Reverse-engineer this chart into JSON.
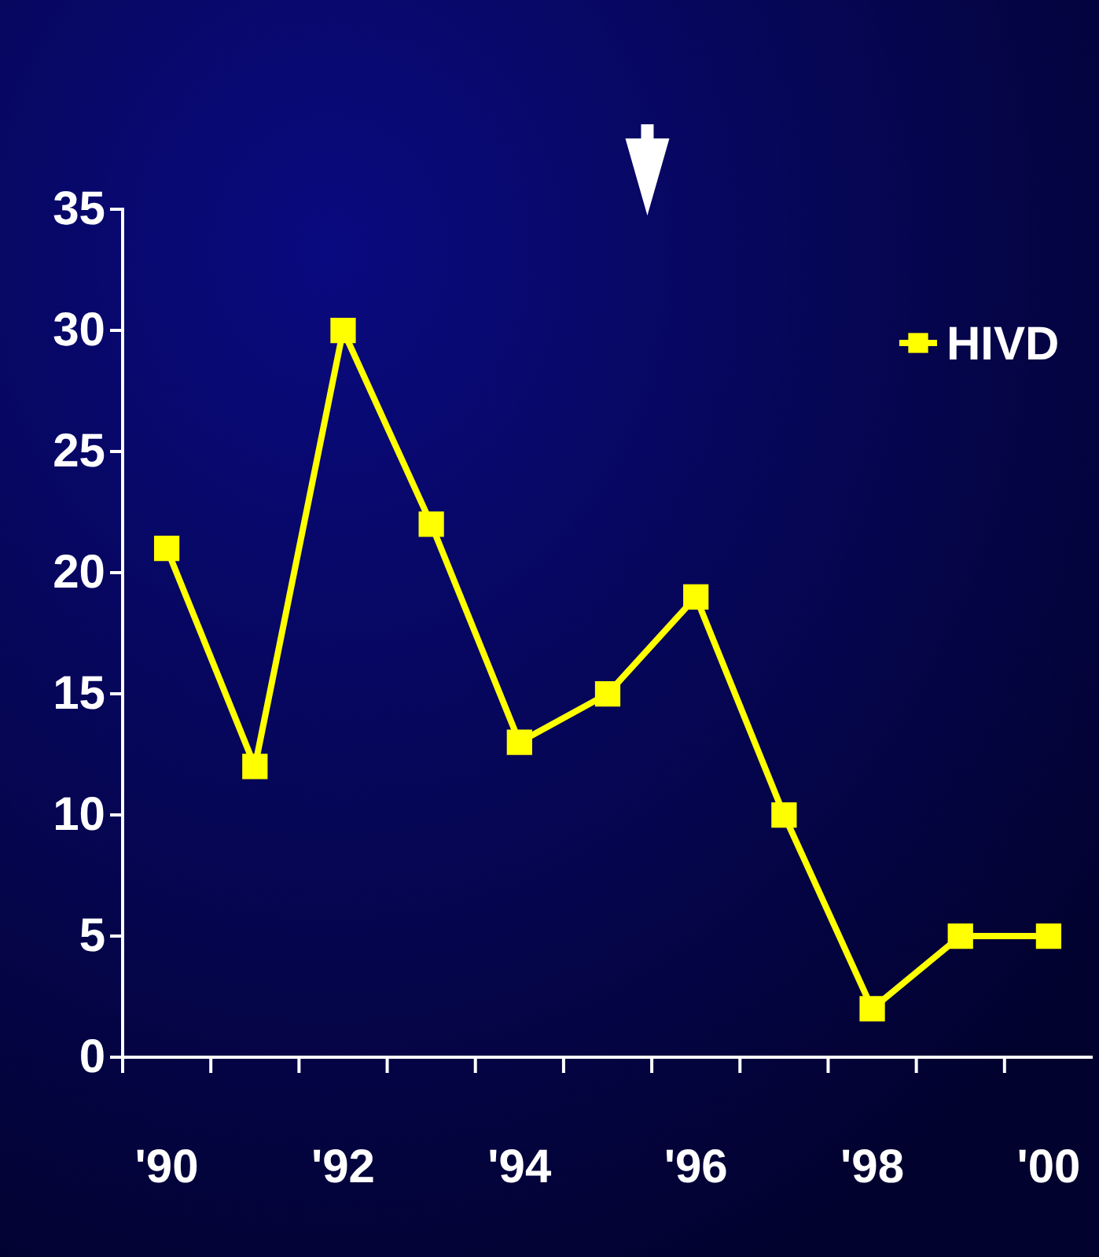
{
  "chart_data": {
    "type": "line",
    "categories": [
      "'90",
      null,
      "'92",
      null,
      "'94",
      null,
      "'96",
      null,
      "'98",
      null,
      "'00"
    ],
    "series": [
      {
        "name": "HIVD",
        "color": "#ffff00",
        "values": [
          21,
          12,
          30,
          22,
          13,
          15,
          19,
          10,
          2,
          5,
          5
        ]
      }
    ],
    "ylim": [
      0,
      35
    ],
    "yticks": [
      0,
      5,
      10,
      15,
      20,
      25,
      30,
      35
    ],
    "marker": "square",
    "legend": "top right",
    "grid": false
  }
}
